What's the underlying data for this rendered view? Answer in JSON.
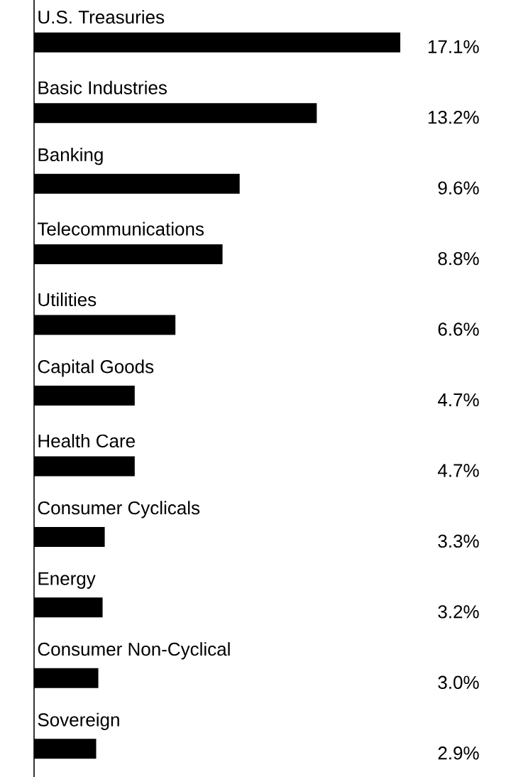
{
  "chart_data": {
    "type": "bar",
    "orientation": "horizontal",
    "color": "#000000",
    "categories": [
      "U.S. Treasuries",
      "Basic Industries",
      "Banking",
      "Telecommunications",
      "Utilities",
      "Capital Goods",
      "Health Care",
      "Consumer Cyclicals",
      "Energy",
      "Consumer Non-Cyclical",
      "Sovereign"
    ],
    "values": [
      17.1,
      13.2,
      9.6,
      8.8,
      6.6,
      4.7,
      4.7,
      3.3,
      3.2,
      3.0,
      2.9
    ],
    "value_labels": [
      "17.1%",
      "13.2%",
      "9.6%",
      "8.8%",
      "6.6%",
      "4.7%",
      "4.7%",
      "3.3%",
      "3.2%",
      "3.0%",
      "2.9%"
    ]
  }
}
